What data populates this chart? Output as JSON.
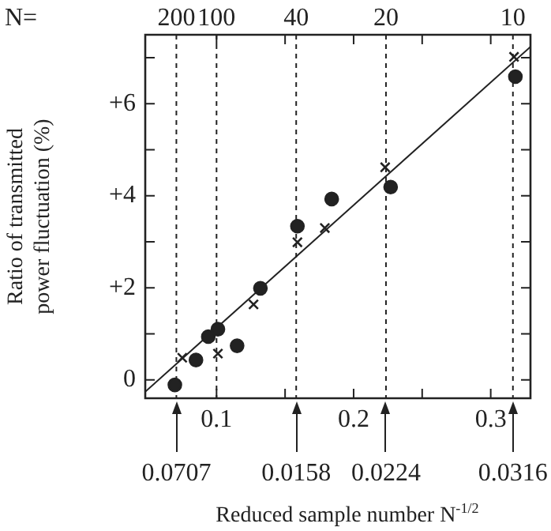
{
  "chart_data": {
    "type": "scatter",
    "xlabel": "Reduced sample number N$^{-1/2}$",
    "ylabel": "Ratio of transmitted\npower fluctuation (%)",
    "xlim": [
      0.048,
      0.329
    ],
    "ylim": [
      -0.4,
      7.5
    ],
    "xticks": [
      0.1,
      {
        "value": 0.15,
        "label": null
      },
      0.2,
      {
        "value": 0.25,
        "label": null
      },
      0.3
    ],
    "yticks": [
      {
        "value": 0,
        "label": "0"
      },
      {
        "value": 1,
        "label": null
      },
      {
        "value": 2,
        "label": "+2"
      },
      {
        "value": 3,
        "label": null
      },
      {
        "value": 4,
        "label": "+4"
      },
      {
        "value": 5,
        "label": null
      },
      {
        "value": 6,
        "label": "+6"
      },
      {
        "value": 7,
        "label": null
      }
    ],
    "ref_lines": [
      {
        "axis": "x",
        "value": 0.0707,
        "line_style": "dashed"
      },
      {
        "axis": "x",
        "value": 0.1,
        "line_style": "dashed"
      },
      {
        "axis": "x",
        "value": 0.1581,
        "line_style": "dashed"
      },
      {
        "axis": "x",
        "value": 0.2236,
        "line_style": "dashed"
      },
      {
        "axis": "x",
        "value": 0.3162,
        "line_style": "dashed"
      }
    ],
    "annotations": [
      "N=",
      {
        "text": "200",
        "x": 0.0707,
        "y": 7.5
      },
      {
        "text": "100",
        "x": 0.1,
        "y": 7.5
      },
      {
        "text": "40",
        "x": 0.1581,
        "y": 7.5
      },
      {
        "text": "20",
        "x": 0.2236,
        "y": 7.5
      },
      {
        "text": "10",
        "x": 0.3162,
        "y": 7.5
      },
      {
        "text": "0.0707",
        "x": 0.0707,
        "y": -0.4
      },
      {
        "text": "0.0158",
        "x": 0.1581,
        "y": -0.4
      },
      {
        "text": "0.0224",
        "x": 0.2236,
        "y": -0.4
      },
      {
        "text": "0.0316",
        "x": 0.3162,
        "y": -0.4
      }
    ],
    "grid": false,
    "legend": false,
    "series": [
      {
        "marker": "circle",
        "color": "#222222",
        "x": [
          0.0696,
          0.085,
          0.094,
          0.101,
          0.115,
          0.132,
          0.159,
          0.184,
          0.227,
          0.318
        ],
        "values": [
          -0.11,
          0.43,
          0.94,
          1.1,
          0.74,
          1.99,
          3.34,
          3.93,
          4.19,
          6.59
        ]
      },
      {
        "marker": "cross",
        "color": "#222222",
        "x": [
          0.075,
          0.101,
          0.127,
          0.159,
          0.179,
          0.223,
          0.317
        ],
        "values": [
          0.48,
          0.57,
          1.64,
          2.99,
          3.3,
          4.62,
          7.02
        ]
      },
      {
        "type": "line",
        "marker": "none",
        "line_style": "solid",
        "color": "#222222",
        "x": [
          0.048,
          0.329
        ],
        "values": [
          -0.26,
          7.24
        ]
      }
    ]
  }
}
